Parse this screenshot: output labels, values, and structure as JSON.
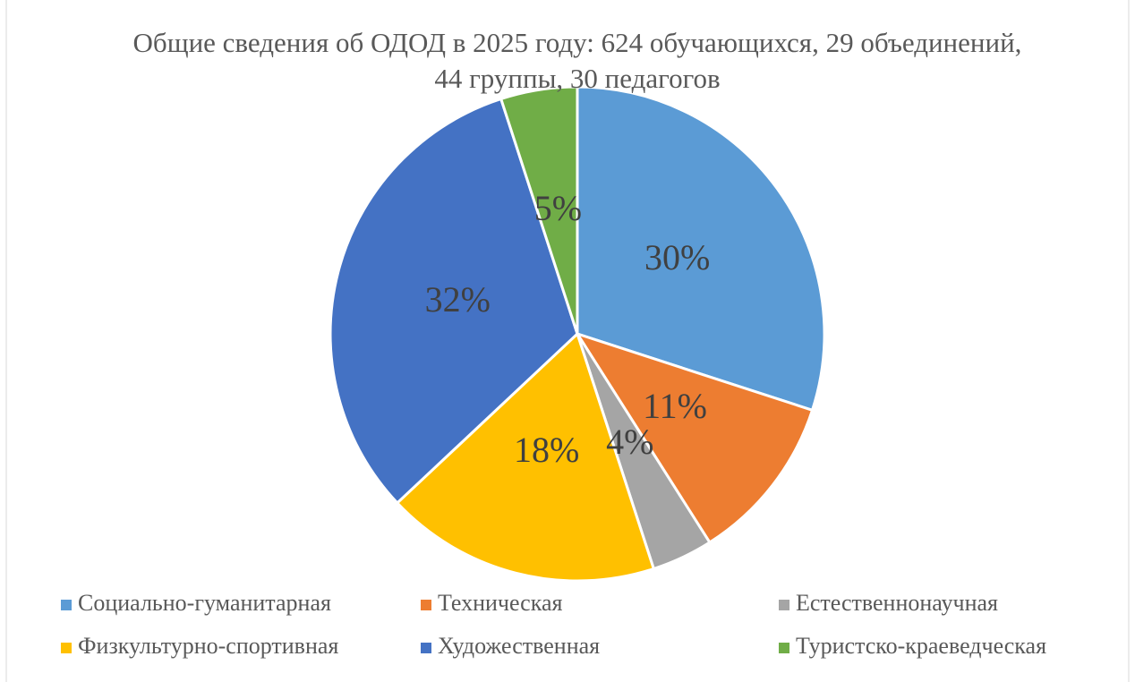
{
  "chart_data": {
    "type": "pie",
    "title": "Общие сведения об ОДОД в 2025 году: 624 обучающихся, 29 объединений, 44 группы, 30 педагогов",
    "categories": [
      "Социально-гуманитарная",
      "Техническая",
      "Естественнонаучная",
      "Физкультурно-спортивная",
      "Художественная",
      "Туристско-краеведческая"
    ],
    "values": [
      30,
      11,
      4,
      18,
      32,
      5
    ],
    "value_labels": [
      "30%",
      "11%",
      "4%",
      "18%",
      "32%",
      "5%"
    ],
    "colors": [
      "#5b9bd5",
      "#ed7d31",
      "#a5a5a5",
      "#ffc000",
      "#4472c4",
      "#70ad47"
    ],
    "legend": "bottom"
  }
}
